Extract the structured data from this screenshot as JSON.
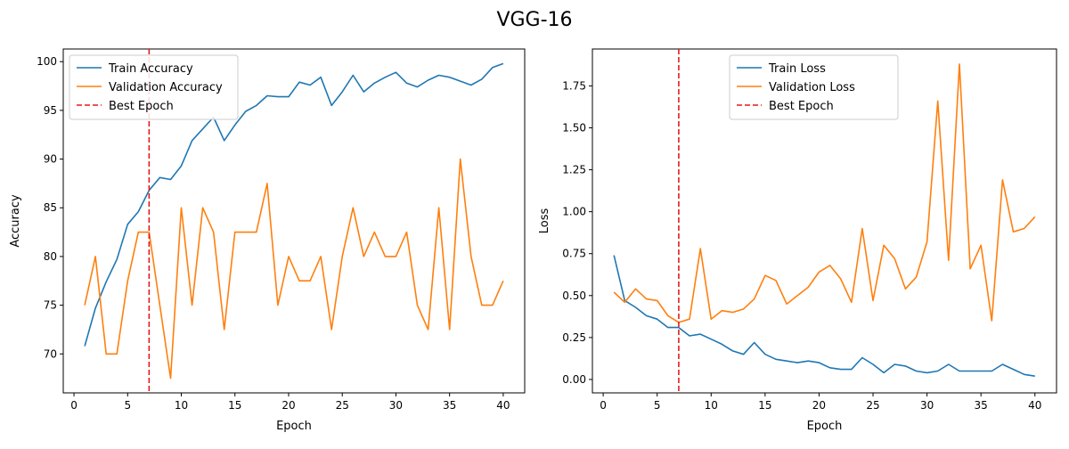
{
  "figure": {
    "suptitle": "VGG-16"
  },
  "colors": {
    "train": "#1f77b4",
    "validation": "#ff7f0e",
    "best_epoch": "#e41a1c"
  },
  "chart_data": [
    {
      "type": "line",
      "title": "",
      "xlabel": "Epoch",
      "ylabel": "Accuracy",
      "xlim": [
        -1,
        42
      ],
      "ylim": [
        66.0,
        101.3
      ],
      "xticks": [
        0,
        5,
        10,
        15,
        20,
        25,
        30,
        35,
        40
      ],
      "yticks": [
        70,
        75,
        80,
        85,
        90,
        95,
        100
      ],
      "grid": false,
      "legend_position": "top-left",
      "x": [
        1,
        2,
        3,
        4,
        5,
        6,
        7,
        8,
        9,
        10,
        11,
        12,
        13,
        14,
        15,
        16,
        17,
        18,
        19,
        20,
        21,
        22,
        23,
        24,
        25,
        26,
        27,
        28,
        29,
        30,
        31,
        32,
        33,
        34,
        35,
        36,
        37,
        38,
        39,
        40
      ],
      "series": [
        {
          "name": "Train Accuracy",
          "color": "#1f77b4",
          "style": "solid",
          "values": [
            70.8,
            74.7,
            77.4,
            79.7,
            83.3,
            84.6,
            86.8,
            88.1,
            87.9,
            89.3,
            91.9,
            93.1,
            94.3,
            91.9,
            93.5,
            94.9,
            95.5,
            96.5,
            96.4,
            96.4,
            97.9,
            97.6,
            98.4,
            95.5,
            96.9,
            98.6,
            96.9,
            97.8,
            98.4,
            98.9,
            97.8,
            97.4,
            98.1,
            98.6,
            98.4,
            98.0,
            97.6,
            98.2,
            99.4,
            99.8
          ]
        },
        {
          "name": "Validation Accuracy",
          "color": "#ff7f0e",
          "style": "solid",
          "values": [
            75.0,
            80.0,
            70.0,
            70.0,
            77.5,
            82.5,
            82.5,
            75.0,
            67.5,
            85.0,
            75.0,
            85.0,
            82.5,
            72.5,
            82.5,
            82.5,
            82.5,
            87.5,
            75.0,
            80.0,
            77.5,
            77.5,
            80.0,
            72.5,
            80.0,
            85.0,
            80.0,
            82.5,
            80.0,
            80.0,
            82.5,
            75.0,
            72.5,
            85.0,
            72.5,
            90.0,
            80.0,
            75.0,
            75.0,
            77.5
          ]
        }
      ],
      "best_epoch": {
        "name": "Best Epoch",
        "x": 7,
        "style": "dashed"
      }
    },
    {
      "type": "line",
      "title": "",
      "xlabel": "Epoch",
      "ylabel": "Loss",
      "xlim": [
        -1,
        42
      ],
      "ylim": [
        -0.08,
        1.97
      ],
      "xticks": [
        0,
        5,
        10,
        15,
        20,
        25,
        30,
        35,
        40
      ],
      "yticks": [
        0.0,
        0.25,
        0.5,
        0.75,
        1.0,
        1.25,
        1.5,
        1.75
      ],
      "ytick_labels": [
        "0.00",
        "0.25",
        "0.50",
        "0.75",
        "1.00",
        "1.25",
        "1.50",
        "1.75"
      ],
      "grid": false,
      "legend_position": "top-center",
      "x": [
        1,
        2,
        3,
        4,
        5,
        6,
        7,
        8,
        9,
        10,
        11,
        12,
        13,
        14,
        15,
        16,
        17,
        18,
        19,
        20,
        21,
        22,
        23,
        24,
        25,
        26,
        27,
        28,
        29,
        30,
        31,
        32,
        33,
        34,
        35,
        36,
        37,
        38,
        39,
        40
      ],
      "series": [
        {
          "name": "Train Loss",
          "color": "#1f77b4",
          "style": "solid",
          "values": [
            0.74,
            0.47,
            0.43,
            0.38,
            0.36,
            0.31,
            0.31,
            0.26,
            0.27,
            0.24,
            0.21,
            0.17,
            0.15,
            0.22,
            0.15,
            0.12,
            0.11,
            0.1,
            0.11,
            0.1,
            0.07,
            0.06,
            0.06,
            0.13,
            0.09,
            0.04,
            0.09,
            0.08,
            0.05,
            0.04,
            0.05,
            0.09,
            0.05,
            0.05,
            0.05,
            0.05,
            0.09,
            0.06,
            0.03,
            0.02
          ]
        },
        {
          "name": "Validation Loss",
          "color": "#ff7f0e",
          "style": "solid",
          "values": [
            0.52,
            0.46,
            0.54,
            0.48,
            0.47,
            0.38,
            0.34,
            0.36,
            0.78,
            0.36,
            0.41,
            0.4,
            0.42,
            0.48,
            0.62,
            0.59,
            0.45,
            0.5,
            0.55,
            0.64,
            0.68,
            0.6,
            0.46,
            0.9,
            0.47,
            0.8,
            0.72,
            0.54,
            0.61,
            0.82,
            1.66,
            0.71,
            1.88,
            0.66,
            0.8,
            0.35,
            1.19,
            0.88,
            0.9,
            0.97
          ]
        }
      ],
      "best_epoch": {
        "name": "Best Epoch",
        "x": 7,
        "style": "dashed"
      }
    }
  ]
}
